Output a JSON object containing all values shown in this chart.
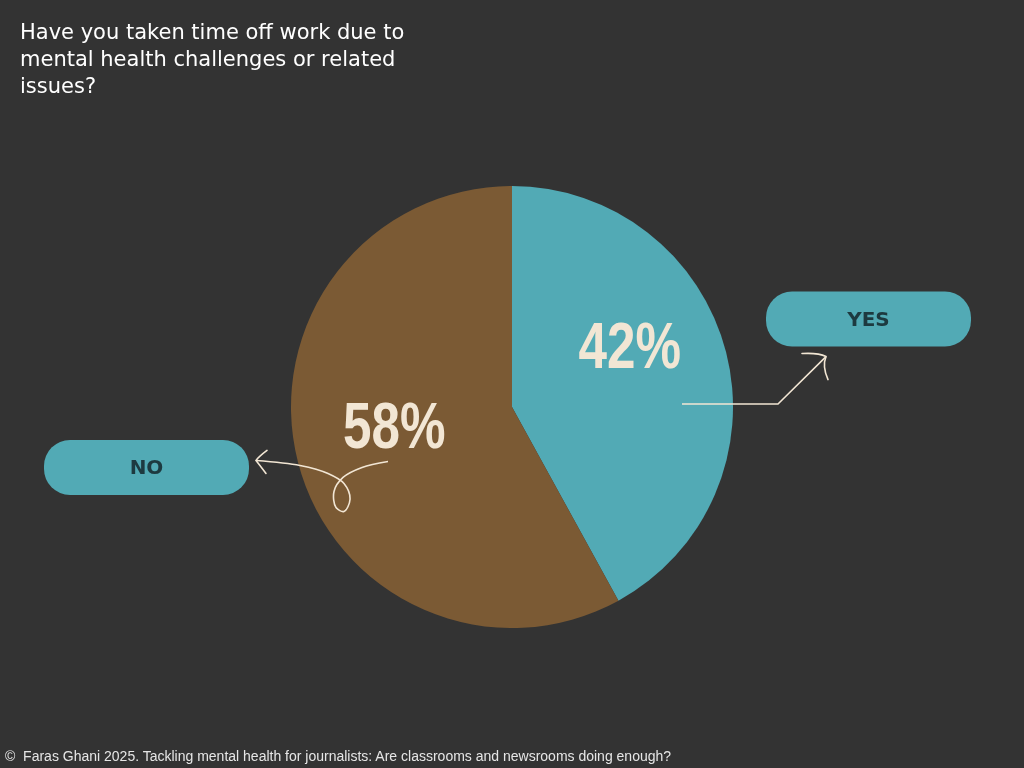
{
  "chart_data": {
    "type": "pie",
    "title": "Have you taken time off work due to mental health challenges or related issues?",
    "categories": [
      "YES",
      "NO"
    ],
    "values": [
      42,
      58
    ],
    "colors": [
      "#52aab5",
      "#7b5a34"
    ],
    "value_labels": [
      "42%",
      "58%"
    ],
    "annotations": [
      "©  Faras Ghani 2025. Tackling mental health for journalists: Are classrooms and newsrooms doing enough?"
    ]
  }
}
